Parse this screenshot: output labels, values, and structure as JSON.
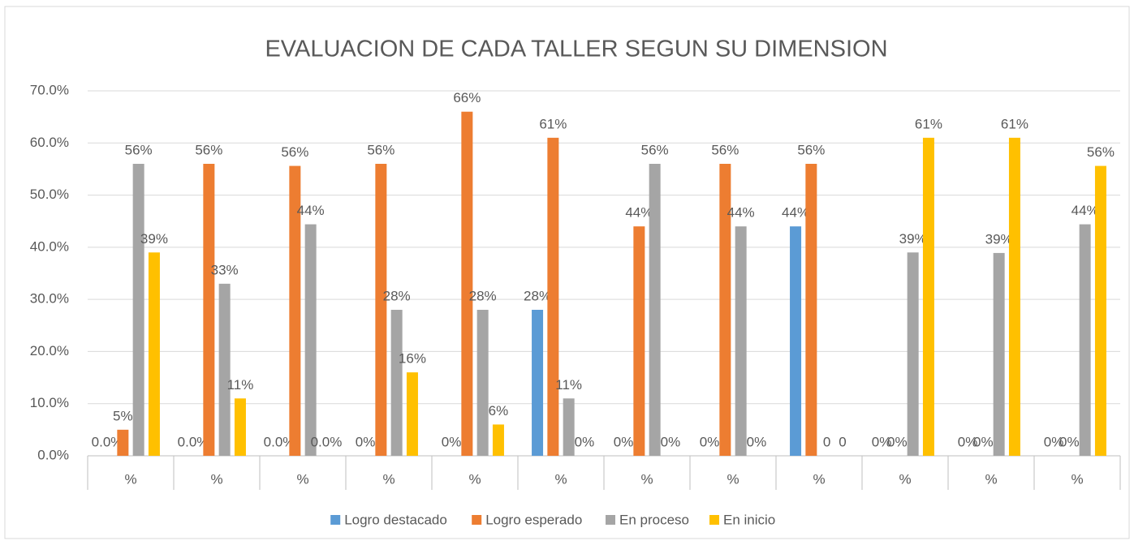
{
  "chart_data": {
    "type": "bar",
    "title": "EVALUACION DE CADA TALLER SEGUN SU DIMENSION",
    "categories": [
      "%",
      "%",
      "%",
      "%",
      "%",
      "%",
      "%",
      "%",
      "%",
      "%",
      "%",
      "%"
    ],
    "series": [
      {
        "name": "Logro destacado",
        "color": "#5b9bd5",
        "values": [
          0,
          0,
          0,
          0,
          0,
          28,
          0,
          0,
          44,
          0,
          0,
          0
        ],
        "value_labels": [
          "0.0%",
          "0.0%",
          "0.0%",
          "0%",
          "0%",
          "28%",
          "0%",
          "0%",
          "44%",
          "0%",
          "0%",
          "0%"
        ]
      },
      {
        "name": "Logro esperado",
        "color": "#ed7d31",
        "values": [
          5,
          56,
          55.6,
          56,
          66,
          61,
          44,
          56,
          56,
          0,
          0,
          0
        ],
        "value_labels": [
          "5%",
          "56%",
          "56%",
          "56%",
          "66%",
          "61%",
          "44%",
          "56%",
          "56%",
          "0%",
          "0%",
          "0%"
        ]
      },
      {
        "name": "En proceso",
        "color": "#a5a5a5",
        "values": [
          56,
          33,
          44.4,
          28,
          28,
          11,
          56,
          44,
          0,
          39,
          38.9,
          44.4
        ],
        "value_labels": [
          "56%",
          "33%",
          "44%",
          "28%",
          "28%",
          "11%",
          "56%",
          "44%",
          "0",
          "39%",
          "39%",
          "44%"
        ]
      },
      {
        "name": "En inicio",
        "color": "#ffc000",
        "values": [
          39,
          11,
          0,
          16,
          6,
          0,
          0,
          0,
          0,
          61,
          61,
          55.6
        ],
        "value_labels": [
          "39%",
          "11%",
          "0.0%",
          "16%",
          "6%",
          "0%",
          "0%",
          "0%",
          "0",
          "61%",
          "61%",
          "56%"
        ]
      }
    ],
    "ylim": [
      0,
      70
    ],
    "yticks": [
      {
        "value": 0,
        "label": "0.0%"
      },
      {
        "value": 10,
        "label": "10.0%"
      },
      {
        "value": 20,
        "label": "20.0%"
      },
      {
        "value": 30,
        "label": "30.0%"
      },
      {
        "value": 40,
        "label": "40.0%"
      },
      {
        "value": 50,
        "label": "50.0%"
      },
      {
        "value": 60,
        "label": "60.0%"
      },
      {
        "value": 70,
        "label": "70.0%"
      }
    ],
    "grid": true,
    "legend": "bottom"
  }
}
